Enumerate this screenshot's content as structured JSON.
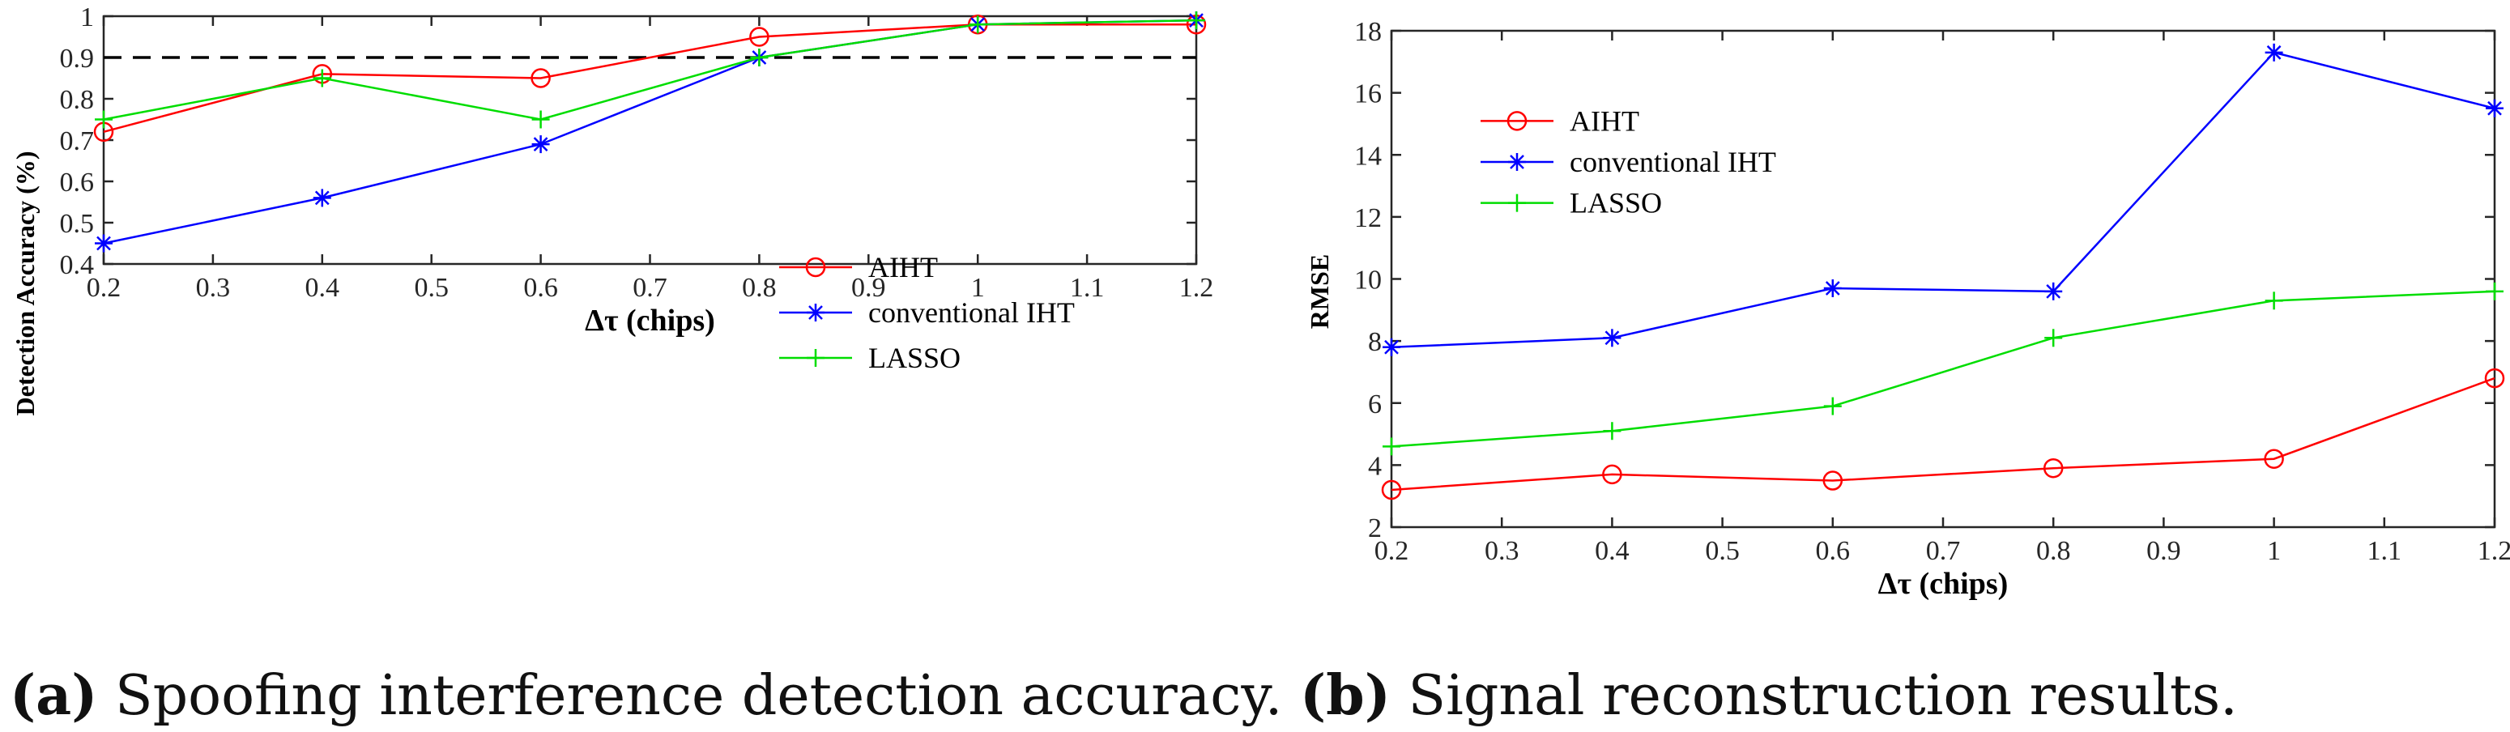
{
  "chart_data": [
    {
      "type": "line",
      "x": [
        0.2,
        0.4,
        0.6,
        0.8,
        1.0,
        1.2
      ],
      "xlim": [
        0.2,
        1.2
      ],
      "ylim": [
        0.4,
        1.0
      ],
      "xticks": [
        "0.2",
        "0.3",
        "0.4",
        "0.5",
        "0.6",
        "0.7",
        "0.8",
        "0.9",
        "1",
        "1.1",
        "1.2"
      ],
      "yticks": [
        "0.4",
        "0.5",
        "0.6",
        "0.7",
        "0.8",
        "0.9",
        "1"
      ],
      "xlabel": "Δτ (chips)",
      "ylabel": "Detection Accuracy (%)",
      "reference_line": 0.9,
      "legend_position": "center-right",
      "series": [
        {
          "name": "AIHT",
          "values": [
            0.72,
            0.86,
            0.85,
            0.95,
            0.98,
            0.98
          ],
          "color": "#ff0000",
          "marker": "circle"
        },
        {
          "name": "conventional IHT",
          "values": [
            0.45,
            0.56,
            0.69,
            0.9,
            0.98,
            0.99
          ],
          "color": "#0000ff",
          "marker": "star"
        },
        {
          "name": "LASSO",
          "values": [
            0.75,
            0.85,
            0.75,
            0.9,
            0.98,
            0.99
          ],
          "color": "#00dd00",
          "marker": "plus"
        }
      ],
      "caption_label": "(a)",
      "caption_text": " Spoofing interference detection accuracy."
    },
    {
      "type": "line",
      "x": [
        0.2,
        0.4,
        0.6,
        0.8,
        1.0,
        1.2
      ],
      "xlim": [
        0.2,
        1.2
      ],
      "ylim": [
        2,
        18
      ],
      "xticks": [
        "0.2",
        "0.3",
        "0.4",
        "0.5",
        "0.6",
        "0.7",
        "0.8",
        "0.9",
        "1",
        "1.1",
        "1.2"
      ],
      "yticks": [
        "2",
        "4",
        "6",
        "8",
        "10",
        "12",
        "14",
        "16",
        "18"
      ],
      "xlabel": "Δτ (chips)",
      "ylabel": "RMSE",
      "legend_position": "top-left",
      "series": [
        {
          "name": "AIHT",
          "values": [
            3.2,
            3.7,
            3.5,
            3.9,
            4.2,
            6.8
          ],
          "color": "#ff0000",
          "marker": "circle"
        },
        {
          "name": "conventional IHT",
          "values": [
            7.8,
            8.1,
            9.7,
            9.6,
            17.3,
            15.5
          ],
          "color": "#0000ff",
          "marker": "star"
        },
        {
          "name": "LASSO",
          "values": [
            4.6,
            5.1,
            5.9,
            8.1,
            9.3,
            9.6
          ],
          "color": "#00dd00",
          "marker": "plus"
        }
      ],
      "caption_label": "(b)",
      "caption_text": " Signal reconstruction results."
    }
  ]
}
